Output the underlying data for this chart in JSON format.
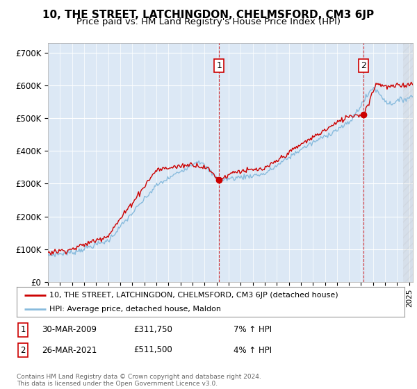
{
  "title": "10, THE STREET, LATCHINGDON, CHELMSFORD, CM3 6JP",
  "subtitle": "Price paid vs. HM Land Registry's House Price Index (HPI)",
  "ylabel_ticks": [
    "£0",
    "£100K",
    "£200K",
    "£300K",
    "£400K",
    "£500K",
    "£600K",
    "£700K"
  ],
  "ytick_vals": [
    0,
    100000,
    200000,
    300000,
    400000,
    500000,
    600000,
    700000
  ],
  "ylim": [
    0,
    730000
  ],
  "xlim_start": 1995.0,
  "xlim_end": 2025.3,
  "background_color": "#dce8f5",
  "plot_bg_color": "#dce8f5",
  "line1_color": "#cc0000",
  "line2_color": "#88bbdd",
  "marker1_date": 2009.22,
  "marker2_date": 2021.22,
  "marker1_price": 311750,
  "marker2_price": 511500,
  "legend_line1": "10, THE STREET, LATCHINGDON, CHELMSFORD, CM3 6JP (detached house)",
  "legend_line2": "HPI: Average price, detached house, Maldon",
  "annotation1_date": "30-MAR-2009",
  "annotation1_price": "£311,750",
  "annotation1_hpi": "7% ↑ HPI",
  "annotation2_date": "26-MAR-2021",
  "annotation2_price": "£511,500",
  "annotation2_hpi": "4% ↑ HPI",
  "footer": "Contains HM Land Registry data © Crown copyright and database right 2024.\nThis data is licensed under the Open Government Licence v3.0.",
  "title_fontsize": 11,
  "subtitle_fontsize": 9.5
}
